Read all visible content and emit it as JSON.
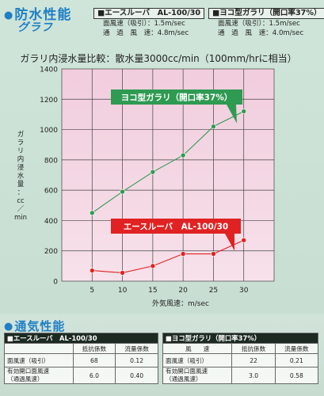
{
  "section1": {
    "title": "防水性能",
    "subtitle": "グラフ"
  },
  "spec_ace": {
    "header": "■エースルーバ　AL-100/30",
    "rows": [
      "面風速（吸引）：1.5m/sec",
      "通　過　風　速：4.8m/sec"
    ]
  },
  "spec_yoko": {
    "header": "■ヨコ型ガラリ（開口率37%）",
    "rows": [
      "面風速（吸引）：1.5m/sec",
      "通　過　風　速：4.0m/sec"
    ]
  },
  "chart_data": {
    "type": "line",
    "title": "ガラリ内浸水量比較：散水量3000cc/min（100mm/hrに相当）",
    "xlabel": "外気風速：m/sec",
    "ylabel": "ガラリ内浸水量：cc/min",
    "ylabel_vertical": [
      "ガ",
      "ラ",
      "リ",
      "内",
      "浸",
      "水",
      "量",
      "：",
      "cc",
      "／",
      "min"
    ],
    "x": [
      5,
      10,
      15,
      20,
      25,
      30
    ],
    "x_ticks": [
      "5",
      "10",
      "15",
      "20",
      "25",
      "30"
    ],
    "y_ticks": [
      "0",
      "200",
      "400",
      "600",
      "800",
      "1000",
      "1200",
      "1400"
    ],
    "xlim": [
      0,
      35
    ],
    "ylim": [
      0,
      1400
    ],
    "grid": true,
    "series": [
      {
        "name": "ヨコ型ガラリ（開口率37%）",
        "color": "#2e9a52",
        "values": [
          450,
          590,
          720,
          830,
          1020,
          1120
        ]
      },
      {
        "name": "エースルーバ　AL-100/30",
        "color": "#e02222",
        "values": [
          70,
          55,
          100,
          180,
          180,
          270
        ]
      }
    ]
  },
  "section2": {
    "title": "通気性能"
  },
  "table_ace": {
    "brand": "■エースルーバ　AL-100/30",
    "headers": [
      "",
      "抵抗係数",
      "流量係数"
    ],
    "rows": [
      [
        "面風速（吸引）",
        "68",
        "0.12"
      ],
      [
        "有効開口面風速\n（通過風速）",
        "6.0",
        "0.40"
      ]
    ]
  },
  "table_yoko": {
    "brand": "■ヨコ型ガラリ（開口率37%）",
    "headers": [
      "風　　速",
      "抵抗係数",
      "流量係数"
    ],
    "rows": [
      [
        "面風速（吸引）",
        "22",
        "0.21"
      ],
      [
        "有効開口面風速\n（通過風速）",
        "3.0",
        "0.58"
      ]
    ]
  }
}
